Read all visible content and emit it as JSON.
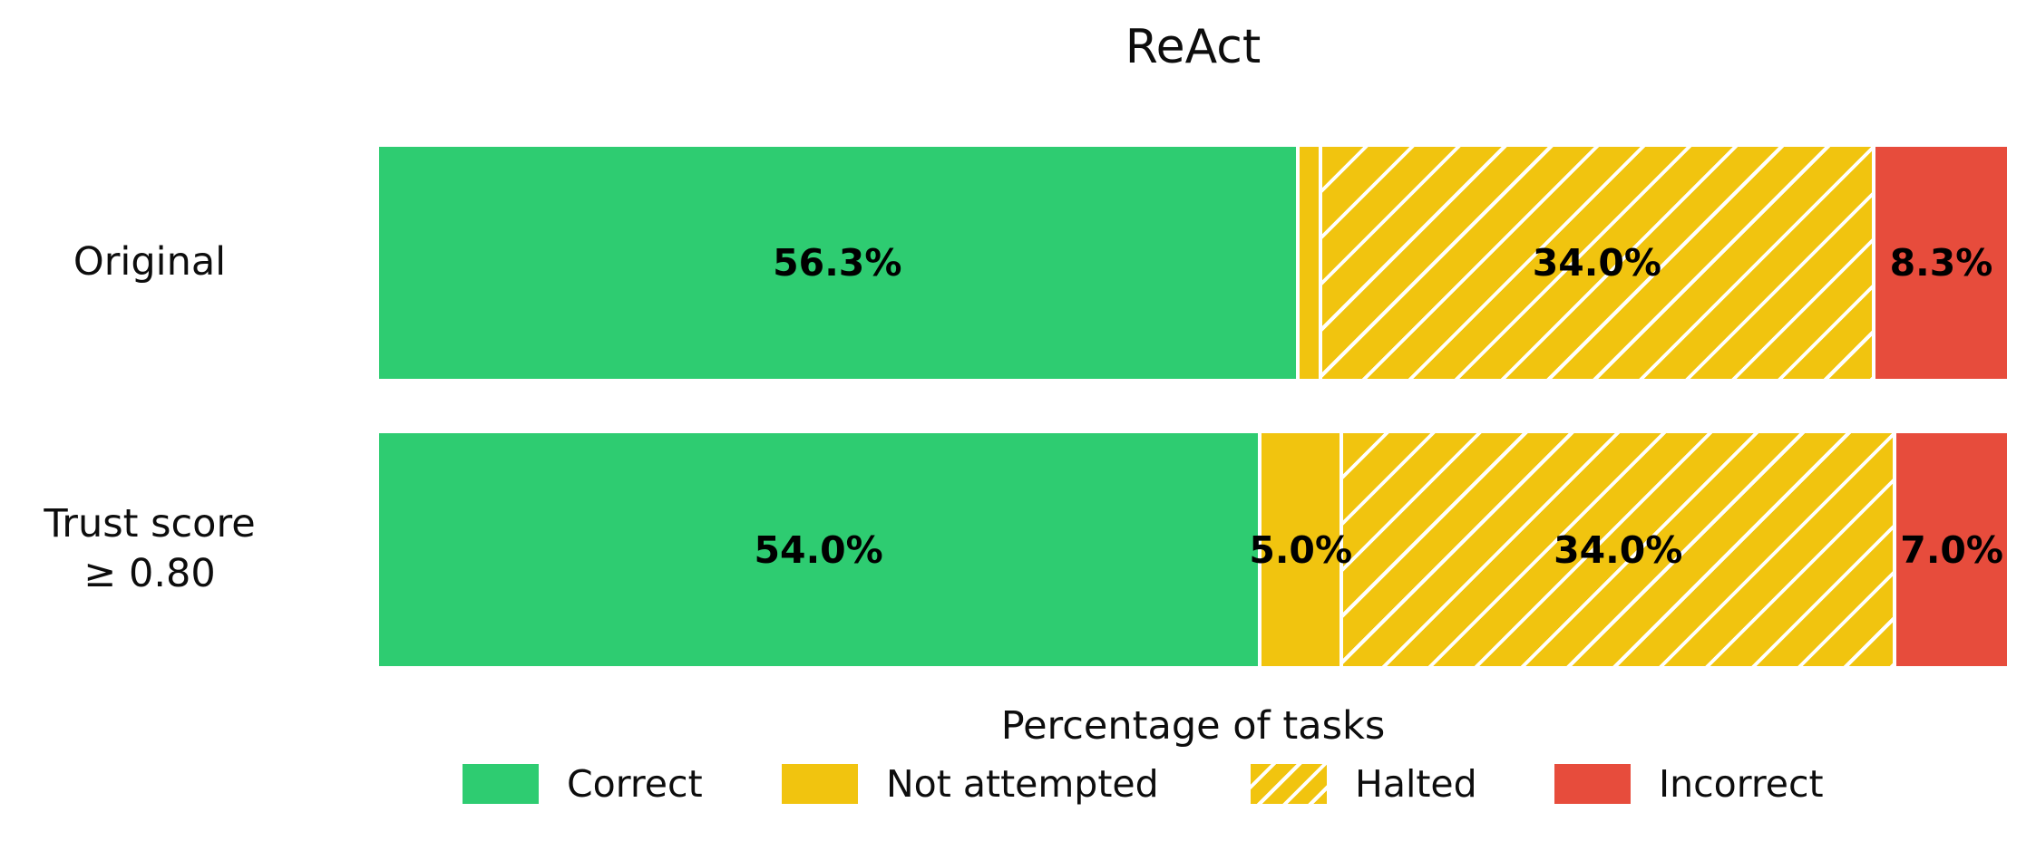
{
  "title": "ReAct",
  "xlabel": "Percentage of tasks",
  "colors": {
    "correct": "#2ecc71",
    "yellow": "#f1c40f",
    "incorrect": "#e74c3c",
    "hatch_line": "#ffffff",
    "text": "#000000",
    "background": "#ffffff"
  },
  "legend": [
    {
      "label": "Correct"
    },
    {
      "label": "Not attempted"
    },
    {
      "label": "Halted"
    },
    {
      "label": "Incorrect"
    }
  ],
  "chart_data": {
    "type": "bar",
    "orientation": "horizontal",
    "stacked": true,
    "title": "ReAct",
    "xlabel": "Percentage of tasks",
    "xlim": [
      0,
      100
    ],
    "grid": false,
    "legend_position": "bottom",
    "categories": [
      "Original",
      "Trust score ≥ 0.80"
    ],
    "categories_display": [
      [
        "Original",
        ""
      ],
      [
        "Trust score",
        "≥ 0.80"
      ]
    ],
    "series": [
      {
        "name": "Correct",
        "style": "solid-green",
        "values": [
          56.3,
          54.0
        ]
      },
      {
        "name": "Not attempted",
        "style": "solid-yellow",
        "values": [
          1.4,
          5.0
        ]
      },
      {
        "name": "Halted",
        "style": "hatched-yellow",
        "values": [
          34.0,
          34.0
        ]
      },
      {
        "name": "Incorrect",
        "style": "solid-red",
        "values": [
          8.3,
          7.0
        ]
      }
    ],
    "bar_labels": [
      [
        "56.3%",
        "",
        "34.0%",
        "8.3%"
      ],
      [
        "54.0%",
        "5.0%",
        "34.0%",
        "7.0%"
      ]
    ]
  }
}
